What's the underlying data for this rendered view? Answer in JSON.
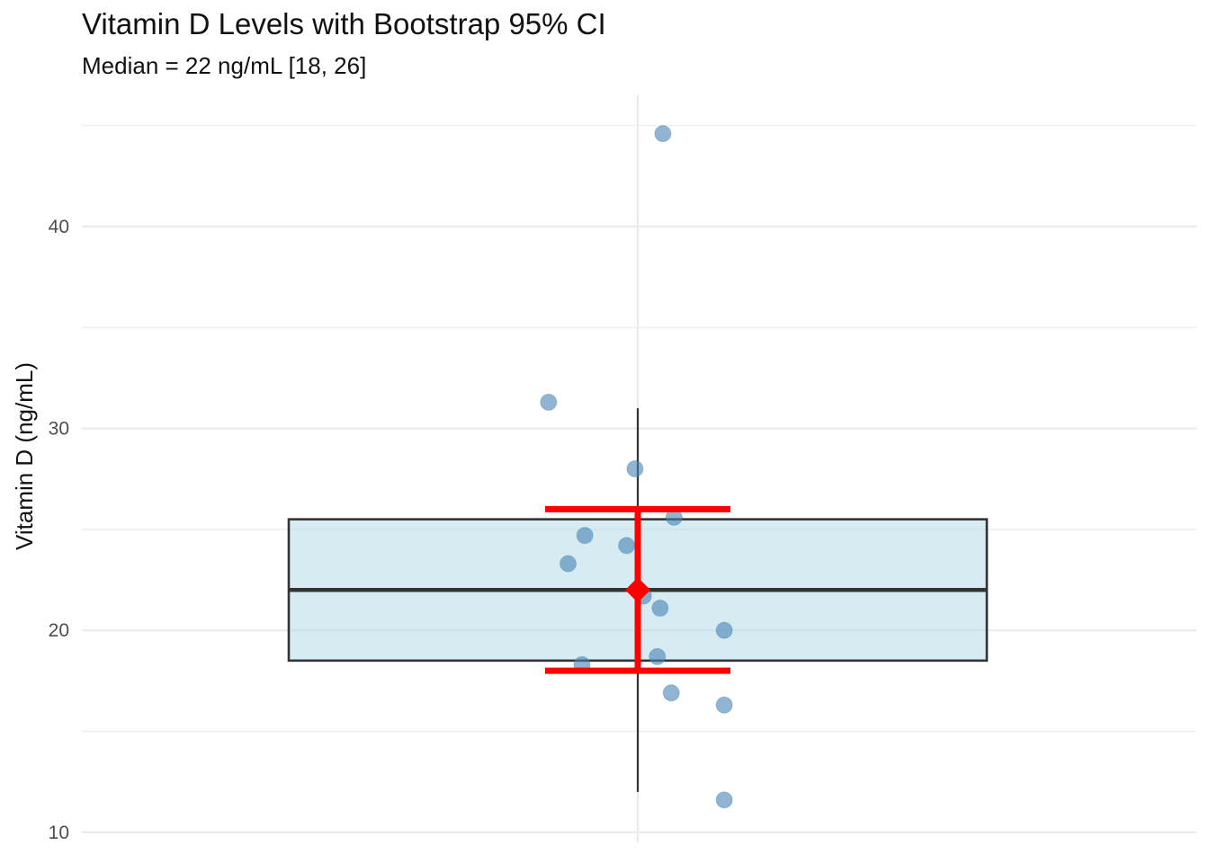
{
  "chart_data": {
    "type": "box",
    "title": "Vitamin D Levels with Bootstrap 95% CI",
    "subtitle": "Median = 22 ng/mL [18, 26]",
    "xlabel": "",
    "ylabel": "Vitamin D (ng/mL)",
    "ylim": [
      9.5,
      46.5
    ],
    "yticks": [
      10,
      20,
      30,
      40
    ],
    "grid": true,
    "box": {
      "q1": 18.5,
      "median": 22.0,
      "q3": 25.5,
      "whisker_low": 12.0,
      "whisker_high": 31.0
    },
    "ci": {
      "median": 22.0,
      "lower": 18.0,
      "upper": 26.0
    },
    "points": [
      {
        "x": 0.045,
        "y": 44.6
      },
      {
        "x": -0.16,
        "y": 31.3
      },
      {
        "x": -0.005,
        "y": 28.0
      },
      {
        "x": 0.065,
        "y": 25.6
      },
      {
        "x": -0.095,
        "y": 24.7
      },
      {
        "x": -0.02,
        "y": 24.2
      },
      {
        "x": -0.125,
        "y": 23.3
      },
      {
        "x": 0.01,
        "y": 21.7
      },
      {
        "x": 0.04,
        "y": 21.1
      },
      {
        "x": 0.155,
        "y": 20.0
      },
      {
        "x": 0.035,
        "y": 18.7
      },
      {
        "x": -0.1,
        "y": 18.3
      },
      {
        "x": 0.06,
        "y": 16.9
      },
      {
        "x": 0.155,
        "y": 16.3
      },
      {
        "x": 0.155,
        "y": 11.6
      }
    ],
    "colors": {
      "box_fill": "#add8e6",
      "box_stroke": "#333333",
      "points": "#4682b4",
      "ci": "#ff0000",
      "grid": "#ebebeb"
    }
  }
}
